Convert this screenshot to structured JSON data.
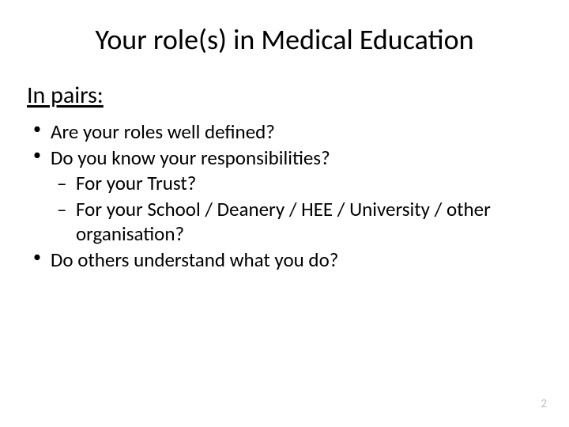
{
  "slide": {
    "title": "Your role(s) in Medical Education",
    "subtitle": "In pairs:",
    "bullets": [
      {
        "text": "Are your roles well defined?"
      },
      {
        "text": "Do you know your responsibilities?",
        "sub": [
          {
            "text": "For your Trust?"
          },
          {
            "text": "For your School / Deanery / HEE / University / other organisation?"
          }
        ]
      },
      {
        "text": "Do others understand what you do?"
      }
    ],
    "page_number": "2"
  },
  "style": {
    "background_color": "#ffffff",
    "text_color": "#000000",
    "page_number_color": "#bfbfbf",
    "title_fontsize": 36,
    "subtitle_fontsize": 30,
    "body_fontsize": 25,
    "font_family": "Calibri"
  }
}
